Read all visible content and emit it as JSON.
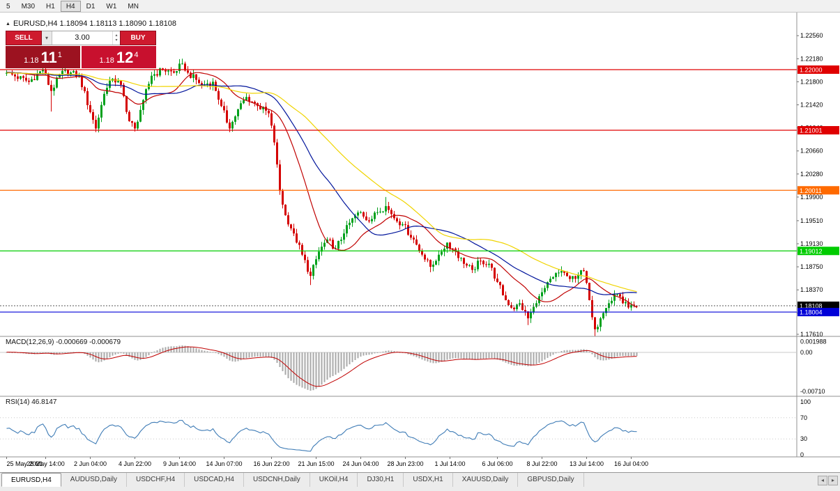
{
  "toolbar": {
    "timeframes": [
      {
        "label": "5",
        "active": false
      },
      {
        "label": "M30",
        "active": false
      },
      {
        "label": "H1",
        "active": false
      },
      {
        "label": "H4",
        "active": true
      },
      {
        "label": "D1",
        "active": false
      },
      {
        "label": "W1",
        "active": false
      },
      {
        "label": "MN",
        "active": false
      }
    ]
  },
  "icons": {
    "expand": "▲",
    "volume_dropdown": "▾",
    "spin_up": "▴",
    "spin_down": "▾",
    "tab_scroll_left": "◂",
    "tab_scroll_right": "▸"
  },
  "chart": {
    "header": "EURUSD,H4 1.18094 1.18113 1.18090 1.18108"
  },
  "trade_panel": {
    "sell_label": "SELL",
    "buy_label": "BUY",
    "volume": "3.00",
    "sell_price": {
      "prefix": "1.18",
      "big": "11",
      "sup": "1"
    },
    "buy_price": {
      "prefix": "1.18",
      "big": "12",
      "sup": "4"
    }
  },
  "indicators": {
    "macd_label": "MACD(12,26,9) -0.000669 -0.000679",
    "rsi_label": "RSI(14) 46.8147"
  },
  "axes": {
    "price_labels": [
      "1.22560",
      "1.22180",
      "1.21800",
      "1.21420",
      "1.21040",
      "1.20660",
      "1.20280",
      "1.19900",
      "1.19510",
      "1.19130",
      "1.18750",
      "1.18370",
      "1.17990",
      "1.17610"
    ],
    "macd_labels": [
      {
        "text": "0.001988",
        "value": 0.001988
      },
      {
        "text": "0.00",
        "value": 0
      },
      {
        "text": "-0.00710",
        "value": -0.0071
      }
    ],
    "rsi_labels": [
      {
        "text": "100",
        "value": 100
      },
      {
        "text": "70",
        "value": 70
      },
      {
        "text": "30",
        "value": 30
      },
      {
        "text": "0",
        "value": 0
      }
    ],
    "time_labels": [
      {
        "text": "25 May 2021",
        "idx": 0
      },
      {
        "text": "28 May 14:00",
        "idx": 14
      },
      {
        "text": "2 Jun 04:00",
        "idx": 30
      },
      {
        "text": "4 Jun 22:00",
        "idx": 46
      },
      {
        "text": "9 Jun 14:00",
        "idx": 62
      },
      {
        "text": "14 Jun 07:00",
        "idx": 78
      },
      {
        "text": "16 Jun 22:00",
        "idx": 95
      },
      {
        "text": "21 Jun 15:00",
        "idx": 111
      },
      {
        "text": "24 Jun 04:00",
        "idx": 127
      },
      {
        "text": "28 Jun 23:00",
        "idx": 143
      },
      {
        "text": "1 Jul 14:00",
        "idx": 159
      },
      {
        "text": "6 Jul 06:00",
        "idx": 176
      },
      {
        "text": "8 Jul 22:00",
        "idx": 192
      },
      {
        "text": "13 Jul 14:00",
        "idx": 208
      },
      {
        "text": "16 Jul 04:00",
        "idx": 224
      }
    ]
  },
  "levels": [
    {
      "price": 1.22,
      "label": "1.22000",
      "color": "#e00000"
    },
    {
      "price": 1.21001,
      "label": "1.21001",
      "color": "#e00000"
    },
    {
      "price": 1.20011,
      "label": "1.20011",
      "color": "#ff6a00"
    },
    {
      "price": 1.19012,
      "label": "1.19012",
      "color": "#00cc00"
    },
    {
      "price": 1.18004,
      "label": "1.18004",
      "color": "#0000d8"
    }
  ],
  "current_price": {
    "bid": 1.18108,
    "label": "1.18108",
    "color": "#000000"
  },
  "chart_data": {
    "type": "candlestick",
    "symbol": "EURUSD",
    "period": "H4",
    "ohlc_header": {
      "open": "1.18094",
      "high": "1.18113",
      "low": "1.18090",
      "close": "1.18108"
    },
    "visible_price_range": [
      1.1761,
      1.2256
    ],
    "candle_count": 227,
    "final_close": 1.18108,
    "waypoints": [
      [
        0,
        1.2195
      ],
      [
        8,
        1.218
      ],
      [
        13,
        1.22
      ],
      [
        16,
        1.2165
      ],
      [
        20,
        1.2198
      ],
      [
        26,
        1.219
      ],
      [
        30,
        1.213
      ],
      [
        32,
        1.2103
      ],
      [
        35,
        1.216
      ],
      [
        38,
        1.2185
      ],
      [
        41,
        1.2175
      ],
      [
        44,
        1.2115
      ],
      [
        46,
        1.2103
      ],
      [
        49,
        1.215
      ],
      [
        52,
        1.219
      ],
      [
        56,
        1.22
      ],
      [
        60,
        1.2195
      ],
      [
        63,
        1.221
      ],
      [
        65,
        1.2195
      ],
      [
        70,
        1.2175
      ],
      [
        74,
        1.218
      ],
      [
        77,
        1.214
      ],
      [
        80,
        1.2103
      ],
      [
        83,
        1.2135
      ],
      [
        86,
        1.2155
      ],
      [
        90,
        1.214
      ],
      [
        94,
        1.2128
      ],
      [
        96,
        1.208
      ],
      [
        98,
        1.2
      ],
      [
        100,
        1.196
      ],
      [
        103,
        1.193
      ],
      [
        106,
        1.1895
      ],
      [
        109,
        1.186
      ],
      [
        112,
        1.19
      ],
      [
        115,
        1.192
      ],
      [
        118,
        1.1905
      ],
      [
        121,
        1.193
      ],
      [
        124,
        1.1955
      ],
      [
        127,
        1.1965
      ],
      [
        130,
        1.195
      ],
      [
        133,
        1.1965
      ],
      [
        136,
        1.1975
      ],
      [
        139,
        1.1955
      ],
      [
        142,
        1.1945
      ],
      [
        146,
        1.192
      ],
      [
        149,
        1.1895
      ],
      [
        152,
        1.1875
      ],
      [
        155,
        1.1895
      ],
      [
        158,
        1.1915
      ],
      [
        161,
        1.19
      ],
      [
        164,
        1.188
      ],
      [
        167,
        1.187
      ],
      [
        170,
        1.1885
      ],
      [
        173,
        1.188
      ],
      [
        176,
        1.185
      ],
      [
        179,
        1.182
      ],
      [
        182,
        1.1805
      ],
      [
        184,
        1.1815
      ],
      [
        187,
        1.179
      ],
      [
        190,
        1.1815
      ],
      [
        193,
        1.184
      ],
      [
        196,
        1.1858
      ],
      [
        199,
        1.1868
      ],
      [
        202,
        1.1855
      ],
      [
        205,
        1.1862
      ],
      [
        207,
        1.1868
      ],
      [
        209,
        1.182
      ],
      [
        211,
        1.1772
      ],
      [
        213,
        1.179
      ],
      [
        216,
        1.1815
      ],
      [
        219,
        1.183
      ],
      [
        221,
        1.1815
      ],
      [
        223,
        1.1808
      ],
      [
        226,
        1.18108
      ]
    ],
    "forced_highs": [
      [
        63,
        1.2218
      ],
      [
        136,
        1.199
      ],
      [
        199,
        1.1875
      ]
    ],
    "forced_lows": [
      [
        16,
        1.2131
      ],
      [
        32,
        1.2097
      ],
      [
        46,
        1.2098
      ],
      [
        80,
        1.2097
      ],
      [
        109,
        1.1845
      ],
      [
        152,
        1.1866
      ],
      [
        187,
        1.1779
      ],
      [
        211,
        1.1761
      ]
    ],
    "up_color": "#00a11c",
    "down_color": "#d40000",
    "moving_averages": [
      {
        "period": 18,
        "color": "#c00000"
      },
      {
        "period": 35,
        "color": "#00149b"
      },
      {
        "period": 60,
        "color": "#f0d400"
      }
    ],
    "macd": {
      "fast": 12,
      "slow": 26,
      "signal": 9,
      "hist_color": "#a9a9a9",
      "signal_color": "#c00000"
    },
    "rsi": {
      "period": 14,
      "current": 46.8147,
      "color": "#3f7cb6"
    }
  },
  "tabs": {
    "items": [
      {
        "label": "EURUSD,H4",
        "active": true
      },
      {
        "label": "AUDUSD,Daily",
        "active": false
      },
      {
        "label": "USDCHF,H4",
        "active": false
      },
      {
        "label": "USDCAD,H4",
        "active": false
      },
      {
        "label": "USDCNH,Daily",
        "active": false
      },
      {
        "label": "UKOil,H4",
        "active": false
      },
      {
        "label": "DJ30,H1",
        "active": false
      },
      {
        "label": "USDX,H1",
        "active": false
      },
      {
        "label": "XAUUSD,Daily",
        "active": false
      },
      {
        "label": "GBPUSD,Daily",
        "active": false
      }
    ]
  }
}
